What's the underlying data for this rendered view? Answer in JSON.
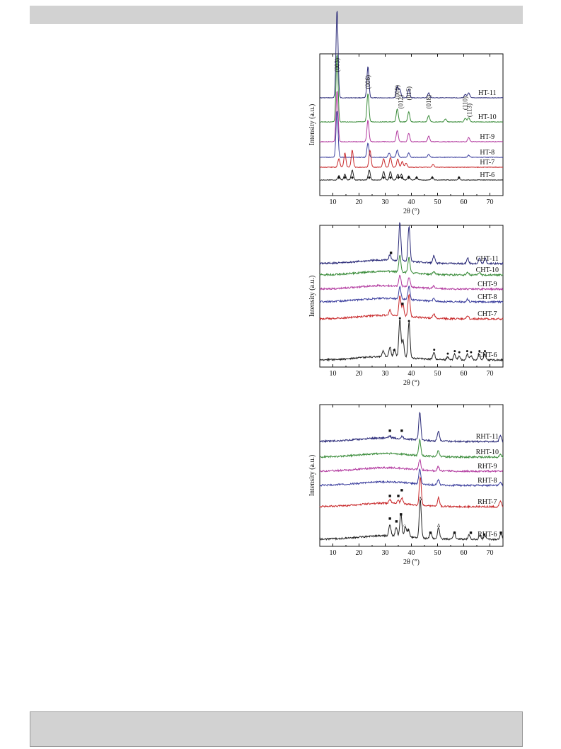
{
  "colors": {
    "black": "#222222",
    "red": "#c8282a",
    "blue": "#3c3f9e",
    "magenta": "#b2399f",
    "green": "#3a8c3a",
    "navy": "#2a2a78"
  },
  "chart_data": [
    {
      "type": "line",
      "panel": "top",
      "title": "",
      "xlabel": "2θ (°)",
      "ylabel": "Intensity (a.u.)",
      "xlim": [
        5,
        75
      ],
      "xticks": [
        10,
        20,
        30,
        40,
        50,
        60,
        70
      ],
      "yticks": false,
      "grid": false,
      "series": [
        {
          "name": "HT-11",
          "color": "#2a2a78",
          "baseline": 0.31,
          "peaks": [
            [
              11.6,
              0.62
            ],
            [
              23.4,
              0.22
            ],
            [
              34.6,
              0.08
            ],
            [
              35.6,
              0.06
            ],
            [
              39.0,
              0.06
            ],
            [
              46.6,
              0.035
            ],
            [
              60.6,
              0.025
            ],
            [
              61.9,
              0.035
            ]
          ]
        },
        {
          "name": "HT-10",
          "color": "#3a8c3a",
          "baseline": 0.48,
          "peaks": [
            [
              11.6,
              0.48
            ],
            [
              23.4,
              0.2
            ],
            [
              34.6,
              0.09
            ],
            [
              39.0,
              0.07
            ],
            [
              46.6,
              0.045
            ],
            [
              53.0,
              0.02
            ],
            [
              60.6,
              0.025
            ],
            [
              61.9,
              0.03
            ]
          ]
        },
        {
          "name": "HT-9",
          "color": "#b2399f",
          "baseline": 0.62,
          "peaks": [
            [
              11.6,
              0.36
            ],
            [
              23.4,
              0.15
            ],
            [
              34.6,
              0.08
            ],
            [
              39.0,
              0.06
            ],
            [
              46.6,
              0.04
            ],
            [
              61.9,
              0.03
            ]
          ]
        },
        {
          "name": "HT-8",
          "color": "#3c3f9e",
          "baseline": 0.73,
          "peaks": [
            [
              11.6,
              0.33
            ],
            [
              23.4,
              0.1
            ],
            [
              31.5,
              0.03
            ],
            [
              34.6,
              0.05
            ],
            [
              39.0,
              0.03
            ],
            [
              46.6,
              0.02
            ],
            [
              61.9,
              0.015
            ]
          ]
        },
        {
          "name": "HT-7",
          "color": "#c8282a",
          "baseline": 0.8,
          "peaks": [
            [
              12.3,
              0.06
            ],
            [
              14.6,
              0.1
            ],
            [
              17.4,
              0.12
            ],
            [
              24.2,
              0.12
            ],
            [
              29.4,
              0.06
            ],
            [
              32.0,
              0.07
            ],
            [
              34.8,
              0.06
            ],
            [
              36.5,
              0.04
            ],
            [
              38.0,
              0.03
            ],
            [
              48.3,
              0.02
            ]
          ]
        },
        {
          "name": "HT-6",
          "color": "#222222",
          "baseline": 0.89,
          "peaks": [
            [
              12.3,
              0.03
            ],
            [
              14.6,
              0.04
            ],
            [
              17.4,
              0.07
            ],
            [
              23.9,
              0.07
            ],
            [
              29.4,
              0.06
            ],
            [
              32.0,
              0.06
            ],
            [
              34.8,
              0.04
            ],
            [
              36.2,
              0.04
            ],
            [
              39.0,
              0.03
            ],
            [
              42.0,
              0.02
            ],
            [
              48.0,
              0.02
            ],
            [
              58.2,
              0.015
            ]
          ]
        }
      ],
      "marker_series": [
        {
          "symbol": "♦",
          "label": "",
          "row": 0.87,
          "x": [
            12.3,
            14.6,
            17.4,
            23.9,
            29.4,
            32.0,
            35.0,
            36.4,
            39.0,
            42.0,
            48.0,
            58.2
          ]
        }
      ],
      "annotations": [
        {
          "text": "(003)",
          "x": 11.6
        },
        {
          "text": "(006)",
          "x": 23.4
        },
        {
          "text": "(009)",
          "x": 34.6
        },
        {
          "text": "(012)",
          "x": 36.0
        },
        {
          "text": "(015)",
          "x": 39.0
        },
        {
          "text": "(018)",
          "x": 46.6
        },
        {
          "text": "(110)",
          "x": 60.6
        },
        {
          "text": "(113)",
          "x": 62.2
        }
      ]
    },
    {
      "type": "line",
      "panel": "middle",
      "title": "",
      "xlabel": "2θ (°)",
      "ylabel": "Intensity (a.u.)",
      "xlim": [
        5,
        75
      ],
      "xticks": [
        10,
        20,
        30,
        40,
        50,
        60,
        70
      ],
      "yticks": false,
      "grid": false,
      "series": [
        {
          "name": "CHT-11",
          "color": "#2a2a78",
          "baseline": 0.27,
          "peaks": [
            [
              31.8,
              0.04
            ],
            [
              35.6,
              0.27
            ],
            [
              39.1,
              0.25
            ],
            [
              48.6,
              0.05
            ],
            [
              61.5,
              0.04
            ],
            [
              66.0,
              0.04
            ],
            [
              68.2,
              0.04
            ]
          ]
        },
        {
          "name": "CHT-10",
          "color": "#3a8c3a",
          "baseline": 0.35,
          "peaks": [
            [
              35.6,
              0.12
            ],
            [
              39.1,
              0.11
            ],
            [
              48.6,
              0.02
            ],
            [
              61.5,
              0.02
            ],
            [
              66.0,
              0.02
            ]
          ]
        },
        {
          "name": "CHT-9",
          "color": "#b2399f",
          "baseline": 0.45,
          "peaks": [
            [
              35.6,
              0.08
            ],
            [
              39.1,
              0.07
            ],
            [
              48.6,
              0.02
            ]
          ]
        },
        {
          "name": "CHT-8",
          "color": "#3c3f9e",
          "baseline": 0.54,
          "peaks": [
            [
              35.6,
              0.09
            ],
            [
              39.1,
              0.09
            ],
            [
              48.6,
              0.02
            ],
            [
              61.5,
              0.02
            ]
          ]
        },
        {
          "name": "CHT-7",
          "color": "#c8282a",
          "baseline": 0.66,
          "peaks": [
            [
              31.8,
              0.04
            ],
            [
              35.6,
              0.14
            ],
            [
              36.8,
              0.08
            ],
            [
              39.1,
              0.16
            ],
            [
              48.6,
              0.03
            ],
            [
              61.5,
              0.02
            ]
          ]
        },
        {
          "name": "CHT-6",
          "color": "#222222",
          "baseline": 0.95,
          "peaks": [
            [
              29.3,
              0.04
            ],
            [
              31.8,
              0.07
            ],
            [
              33.6,
              0.05
            ],
            [
              35.6,
              0.27
            ],
            [
              36.8,
              0.12
            ],
            [
              39.1,
              0.25
            ],
            [
              48.6,
              0.05
            ],
            [
              53.9,
              0.02
            ],
            [
              56.5,
              0.04
            ],
            [
              58.3,
              0.03
            ],
            [
              61.4,
              0.04
            ],
            [
              62.8,
              0.03
            ],
            [
              65.9,
              0.04
            ],
            [
              68.0,
              0.04
            ]
          ]
        }
      ],
      "marker_series": [
        {
          "symbol": "■",
          "label": "",
          "x": [
            32.2,
            36.6
          ],
          "rows": [
            0.19,
            0.55
          ]
        },
        {
          "symbol": "●",
          "label": "",
          "x": [
            33.4,
            35.6,
            39.1,
            48.7,
            53.9,
            56.6,
            58.3,
            61.3,
            62.8,
            66.0,
            68.1
          ]
        }
      ]
    },
    {
      "type": "line",
      "panel": "bottom",
      "title": "",
      "xlabel": "2θ (°)",
      "ylabel": "Intensity (a.u.)",
      "xlim": [
        5,
        75
      ],
      "xticks": [
        10,
        20,
        30,
        40,
        50,
        60,
        70
      ],
      "yticks": false,
      "grid": false,
      "series": [
        {
          "name": "RHT-11",
          "color": "#2a2a78",
          "baseline": 0.26,
          "peaks": [
            [
              31.8,
              0.015
            ],
            [
              36.5,
              0.015
            ],
            [
              43.2,
              0.2
            ],
            [
              50.3,
              0.07
            ],
            [
              74.0,
              0.04
            ]
          ]
        },
        {
          "name": "RHT-10",
          "color": "#3a8c3a",
          "baseline": 0.37,
          "peaks": [
            [
              43.2,
              0.11
            ],
            [
              50.3,
              0.04
            ],
            [
              74.0,
              0.02
            ]
          ]
        },
        {
          "name": "RHT-9",
          "color": "#b2399f",
          "baseline": 0.47,
          "peaks": [
            [
              43.2,
              0.07
            ],
            [
              50.3,
              0.03
            ]
          ]
        },
        {
          "name": "RHT-8",
          "color": "#3c3f9e",
          "baseline": 0.57,
          "peaks": [
            [
              43.2,
              0.11
            ],
            [
              50.3,
              0.04
            ],
            [
              74.0,
              0.02
            ]
          ]
        },
        {
          "name": "RHT-7",
          "color": "#c8282a",
          "baseline": 0.72,
          "peaks": [
            [
              31.8,
              0.025
            ],
            [
              35.0,
              0.02
            ],
            [
              36.4,
              0.04
            ],
            [
              43.4,
              0.2
            ],
            [
              50.4,
              0.06
            ],
            [
              74.0,
              0.04
            ]
          ]
        },
        {
          "name": "RHT-6",
          "color": "#222222",
          "baseline": 0.95,
          "peaks": [
            [
              31.8,
              0.08
            ],
            [
              34.2,
              0.06
            ],
            [
              36.0,
              0.16
            ],
            [
              37.7,
              0.07
            ],
            [
              38.9,
              0.05
            ],
            [
              43.4,
              0.27
            ],
            [
              47.4,
              0.04
            ],
            [
              50.4,
              0.08
            ],
            [
              56.4,
              0.05
            ],
            [
              62.0,
              0.03
            ],
            [
              66.2,
              0.03
            ],
            [
              68.0,
              0.03
            ],
            [
              74.2,
              0.04
            ]
          ]
        }
      ],
      "marker_series": [
        {
          "symbol": "■",
          "label": "",
          "x": [
            31.8,
            36.3,
            31.8,
            35.0,
            36.3,
            31.8,
            34.3,
            36.0,
            47.3,
            56.5,
            62.7,
            74.2
          ],
          "rows": [
            0.18,
            0.18,
            0.64,
            0.64,
            0.6,
            0.8,
            0.82,
            0.77,
            0.9,
            0.9,
            0.9,
            0.9
          ]
        },
        {
          "symbol": "Δ",
          "label": "",
          "x": [
            43.4,
            50.4
          ],
          "rows": [
            0.66,
            0.85
          ]
        },
        {
          "symbol": "●",
          "label": "",
          "x": [
            38.8,
            67.8
          ],
          "rows": [
            0.88,
            0.91
          ]
        },
        {
          "symbol": "○",
          "label": "",
          "x": [
            37.4
          ],
          "rows": [
            0.85
          ]
        }
      ]
    }
  ]
}
